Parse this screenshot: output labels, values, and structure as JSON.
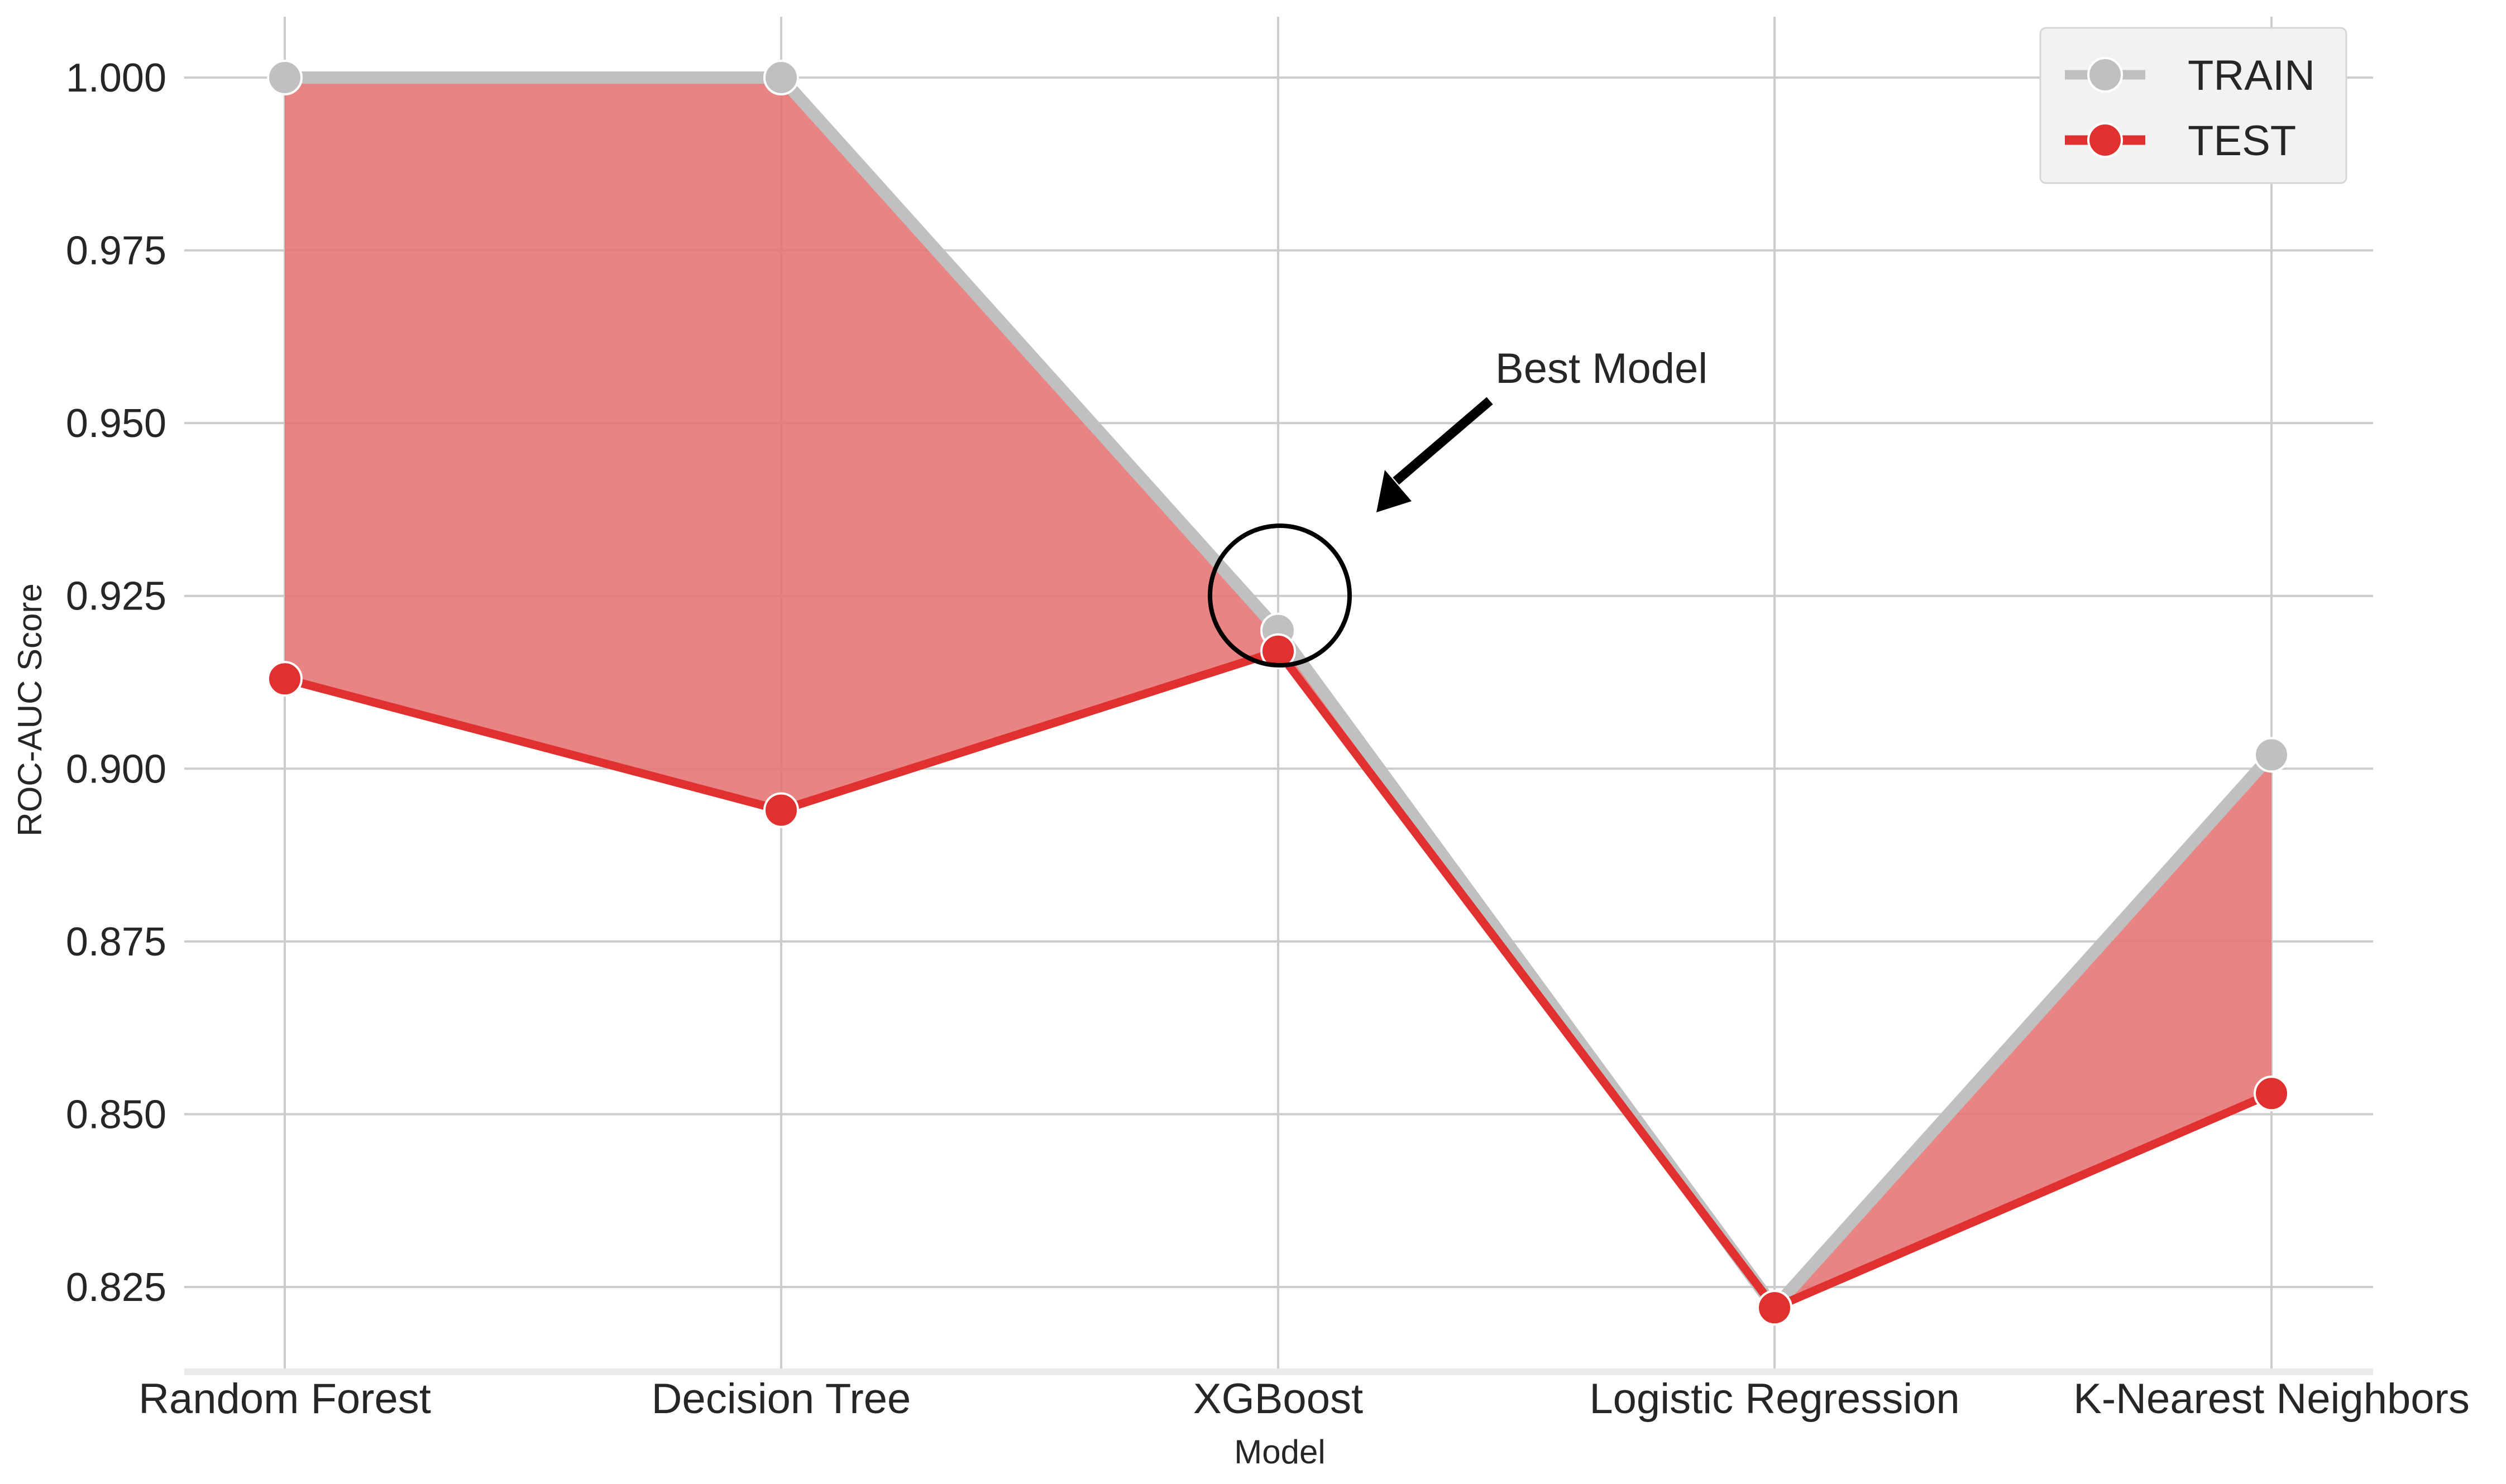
{
  "chart_data": {
    "type": "line",
    "title": "",
    "xlabel": "Model",
    "ylabel": "ROC-AUC Score",
    "categories": [
      "Random Forest",
      "Decision Tree",
      "XGBoost",
      "Logistic Regression",
      "K-Nearest Neighbors"
    ],
    "series": [
      {
        "name": "TRAIN",
        "color": "#c0c0c0",
        "values": [
          1.0,
          1.0,
          0.92,
          0.822,
          0.902
        ]
      },
      {
        "name": "TEST",
        "color": "#e03030",
        "values": [
          0.913,
          0.894,
          0.917,
          0.822,
          0.853
        ]
      }
    ],
    "fill_between": {
      "color": "#e57373"
    },
    "ylim": [
      0.8135,
      1.0085
    ],
    "yticks": [
      0.825,
      0.85,
      0.875,
      0.9,
      0.925,
      0.95,
      0.975,
      1.0
    ],
    "ytick_labels": [
      "0.825",
      "0.850",
      "0.875",
      "0.900",
      "0.925",
      "0.950",
      "0.975",
      "1.000"
    ],
    "grid": true,
    "legend_position": "top-right",
    "annotation": {
      "text": "Best Model",
      "target_category": "XGBoost",
      "target_value": 0.925
    }
  }
}
